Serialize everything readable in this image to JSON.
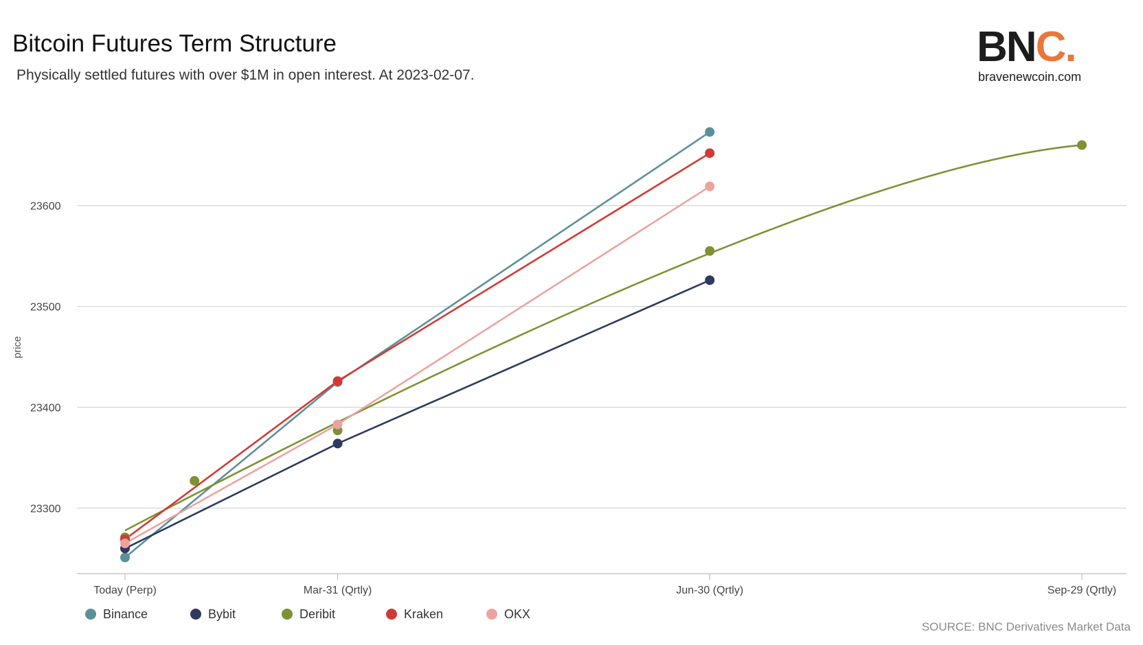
{
  "header": {
    "title": "Bitcoin Futures Term Structure",
    "subtitle": "Physically settled futures with over $1M in open interest. At 2023-02-07."
  },
  "logo": {
    "mark_main": "BN",
    "mark_accent": "C.",
    "url": "bravenewcoin.com"
  },
  "footer": {
    "source": "SOURCE: BNC Derivatives Market Data"
  },
  "colors": {
    "Binance": "#5b9098",
    "Bybit": "#2e3b5e",
    "Deribit": "#7d9233",
    "Kraken": "#d13a34",
    "OKX": "#eba3a0",
    "grid": "#d4d4d4",
    "accent": "#e8773a"
  },
  "chart_data": {
    "type": "line",
    "title": "Bitcoin Futures Term Structure",
    "xlabel": "",
    "ylabel": "price",
    "x_ticks": [
      "Today (Perp)",
      "Mar-31 (Qrtly)",
      "Jun-30 (Qrtly)",
      "Sep-29 (Qrtly)"
    ],
    "x_tick_days": [
      0,
      52,
      143,
      234
    ],
    "ylim": [
      23235,
      23695
    ],
    "y_ticks": [
      23300,
      23400,
      23500,
      23600
    ],
    "grid": true,
    "legend_position": "bottom-left",
    "series": [
      {
        "name": "Binance",
        "points": [
          [
            0,
            23251
          ],
          [
            52,
            23425
          ],
          [
            143,
            23673
          ]
        ]
      },
      {
        "name": "Bybit",
        "points": [
          [
            0,
            23260
          ],
          [
            52,
            23364
          ],
          [
            143,
            23526
          ]
        ]
      },
      {
        "name": "Deribit",
        "points": [
          [
            0,
            23271
          ],
          [
            17,
            23327
          ],
          [
            52,
            23377
          ],
          [
            143,
            23555
          ],
          [
            234,
            23660
          ]
        ]
      },
      {
        "name": "Kraken",
        "points": [
          [
            0,
            23269
          ],
          [
            52,
            23426
          ],
          [
            143,
            23652
          ]
        ]
      },
      {
        "name": "OKX",
        "points": [
          [
            0,
            23265
          ],
          [
            52,
            23383
          ],
          [
            143,
            23619
          ]
        ]
      }
    ]
  }
}
